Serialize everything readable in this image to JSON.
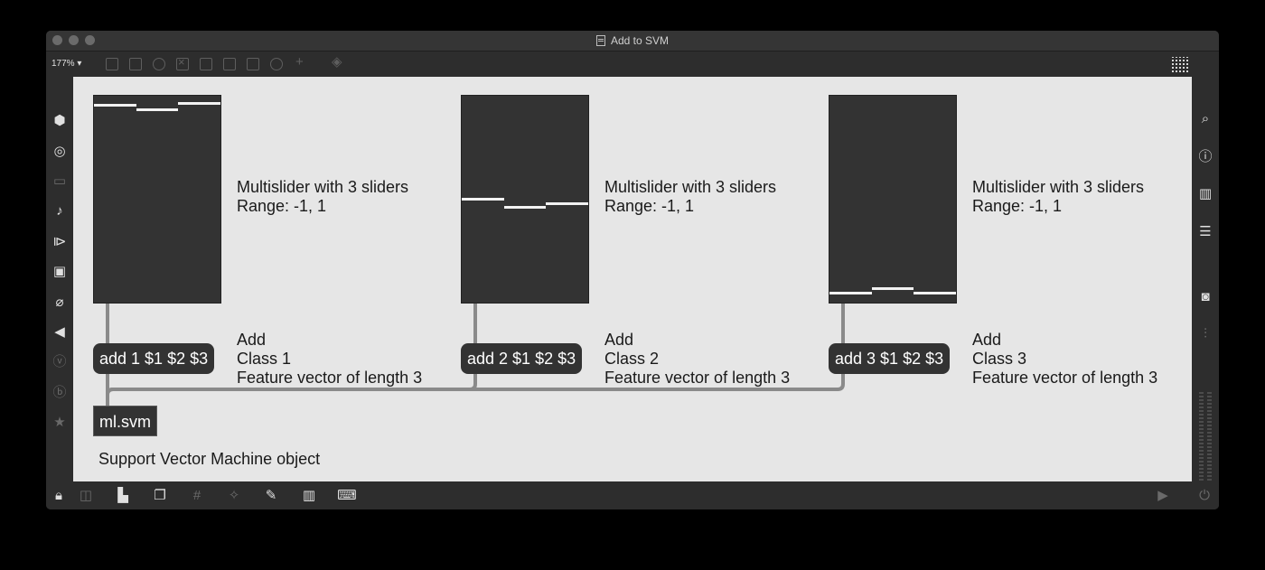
{
  "window": {
    "title": "Add to SVM"
  },
  "toolbar": {
    "zoom": "177%",
    "icons": [
      "object-box-icon",
      "message-box-icon",
      "comment-icon",
      "toggle-icon",
      "button-icon",
      "slider-icon",
      "number-icon",
      "dial-icon",
      "plus-icon",
      "paint-bucket-icon",
      "grid-icon"
    ]
  },
  "left_sidebar": {
    "icons": [
      "packages-icon",
      "target-icon",
      "clipboard-icon",
      "music-note-icon",
      "sequence-icon",
      "image-icon",
      "paperclip-icon",
      "plug-icon",
      "v-circle-icon",
      "b-circle-icon",
      "star-icon"
    ]
  },
  "right_sidebar": {
    "icons": [
      "search-icon",
      "info-icon",
      "book-icon",
      "list-icon",
      "camera-icon",
      "mixer-icon"
    ]
  },
  "bottom_bar": {
    "icons": [
      "lock-icon",
      "edit-icon",
      "presentation-icon",
      "windows-icon",
      "grid-snap-icon",
      "magic-icon",
      "wrench-icon",
      "piano-icon",
      "keyboard-icon",
      "play-icon",
      "power-icon"
    ]
  },
  "patch": {
    "multisliders": [
      {
        "name": "multislider-1",
        "values": [
          0.92,
          0.88,
          0.94
        ],
        "range": [
          -1,
          1
        ]
      },
      {
        "name": "multislider-2",
        "values": [
          0.0,
          -0.08,
          -0.04
        ],
        "range": [
          -1,
          1
        ]
      },
      {
        "name": "multislider-3",
        "values": [
          -0.92,
          -0.88,
          -0.92
        ],
        "range": [
          -1,
          1
        ]
      }
    ],
    "slider_comments": [
      {
        "line1": "Multislider with 3 sliders",
        "line2": "Range: -1, 1"
      },
      {
        "line1": "Multislider with 3 sliders",
        "line2": "Range: -1, 1"
      },
      {
        "line1": "Multislider with 3 sliders",
        "line2": "Range: -1, 1"
      }
    ],
    "messages": [
      {
        "text": "add 1 $1 $2 $3"
      },
      {
        "text": "add 2 $1 $2 $3"
      },
      {
        "text": "add 3 $1 $2 $3"
      }
    ],
    "message_comments": [
      {
        "line1": "Add",
        "line2": "Class 1",
        "line3": "Feature vector of length 3"
      },
      {
        "line1": "Add",
        "line2": "Class 2",
        "line3": "Feature vector of length 3"
      },
      {
        "line1": "Add",
        "line2": "Class 3",
        "line3": "Feature vector of length 3"
      }
    ],
    "object": {
      "text": "ml.svm"
    },
    "object_comment": "Support Vector Machine object"
  }
}
